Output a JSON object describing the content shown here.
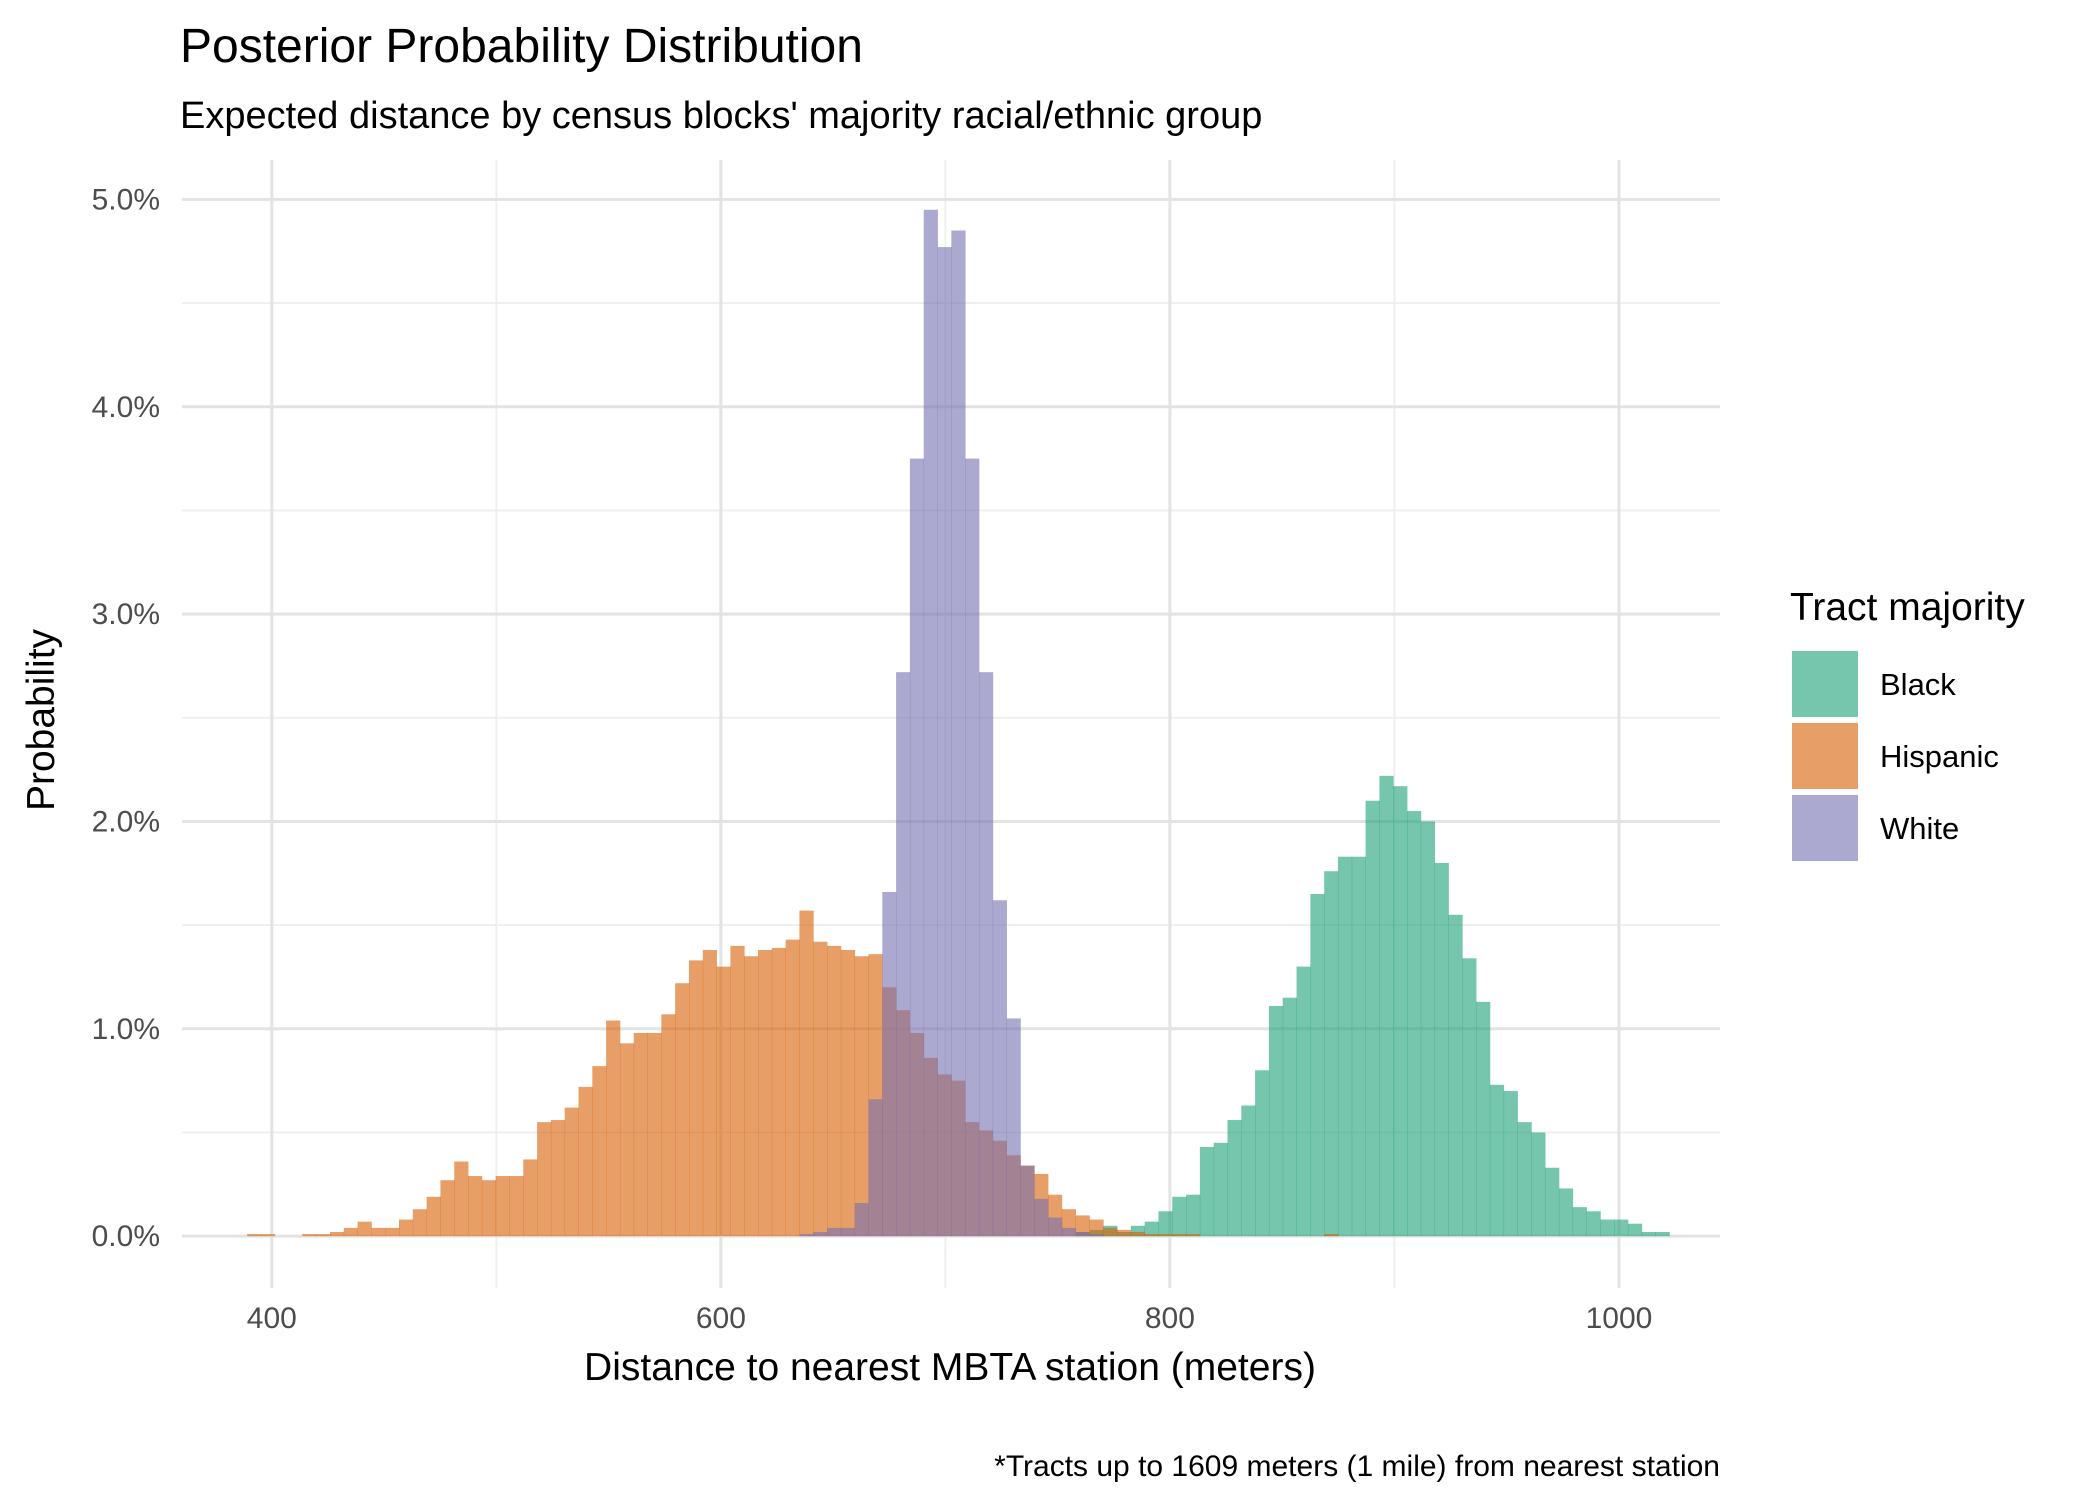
{
  "chart_data": {
    "type": "bar",
    "title": "Posterior Probability Distribution",
    "subtitle": "Expected distance by census blocks' majority racial/ethnic group",
    "xlabel": "Distance to nearest MBTA station (meters)",
    "ylabel": "Probability",
    "caption": "*Tracts up to 1609 meters (1 mile) from nearest station",
    "xlim": [
      360,
      1045
    ],
    "ylim": [
      -0.0025,
      0.0519
    ],
    "x_ticks": [
      400,
      600,
      800,
      1000
    ],
    "x_tick_labels": [
      "400",
      "600",
      "800",
      "1000"
    ],
    "y_ticks": [
      0,
      0.01,
      0.02,
      0.03,
      0.04,
      0.05
    ],
    "y_tick_labels": [
      "0.0%",
      "1.0%",
      "2.0%",
      "3.0%",
      "4.0%",
      "5.0%"
    ],
    "bin_width": 6.15,
    "grid": true,
    "legend": {
      "title": "Tract majority",
      "position": "right"
    },
    "series": [
      {
        "name": "Black",
        "color": "#1B9E77",
        "bin_start": 758,
        "values": [
          0.0002,
          0.0003,
          0.0005,
          0.0002,
          0.0005,
          0.0007,
          0.0012,
          0.0019,
          0.002,
          0.0043,
          0.0045,
          0.0056,
          0.0063,
          0.008,
          0.0111,
          0.0115,
          0.013,
          0.0165,
          0.0176,
          0.0183,
          0.0183,
          0.021,
          0.0222,
          0.0217,
          0.0205,
          0.02,
          0.018,
          0.0155,
          0.0134,
          0.0113,
          0.0073,
          0.007,
          0.0055,
          0.005,
          0.0033,
          0.0023,
          0.0014,
          0.0012,
          0.0008,
          0.0008,
          0.0006,
          0.0002,
          0.0002
        ]
      },
      {
        "name": "Hispanic",
        "color": "#D95F02",
        "bin_start": 389,
        "values": [
          0.0001,
          0.0001,
          0,
          0,
          0.0001,
          0.0001,
          0.0002,
          0.0004,
          0.0007,
          0.0004,
          0.0004,
          0.0008,
          0.0013,
          0.0019,
          0.0027,
          0.0036,
          0.0029,
          0.0027,
          0.0029,
          0.0029,
          0.0037,
          0.0055,
          0.0056,
          0.0062,
          0.0072,
          0.0082,
          0.0104,
          0.0093,
          0.0098,
          0.0098,
          0.0107,
          0.0122,
          0.0133,
          0.0138,
          0.013,
          0.014,
          0.0135,
          0.0138,
          0.0139,
          0.0143,
          0.0157,
          0.0142,
          0.014,
          0.0138,
          0.0135,
          0.0136,
          0.012,
          0.0109,
          0.0098,
          0.0086,
          0.0078,
          0.0075,
          0.0055,
          0.0051,
          0.0046,
          0.0039,
          0.0034,
          0.003,
          0.002,
          0.0013,
          0.001,
          0.0008,
          0.0004,
          0.0003,
          0.0002,
          0.0001,
          0.0001,
          0.0001,
          0.0001,
          0,
          0,
          0,
          0,
          0,
          0,
          0,
          0,
          0,
          0.0001
        ]
      },
      {
        "name": "White",
        "color": "#7570B3",
        "bin_start": 635,
        "values": [
          0.0001,
          0.0002,
          0.0004,
          0.0004,
          0.0016,
          0.0066,
          0.0166,
          0.0272,
          0.0375,
          0.0495,
          0.0477,
          0.0485,
          0.0375,
          0.0272,
          0.0162,
          0.0105,
          0.0034,
          0.0018,
          0.0009,
          0.0004,
          0.0002,
          0.0001
        ]
      }
    ]
  }
}
